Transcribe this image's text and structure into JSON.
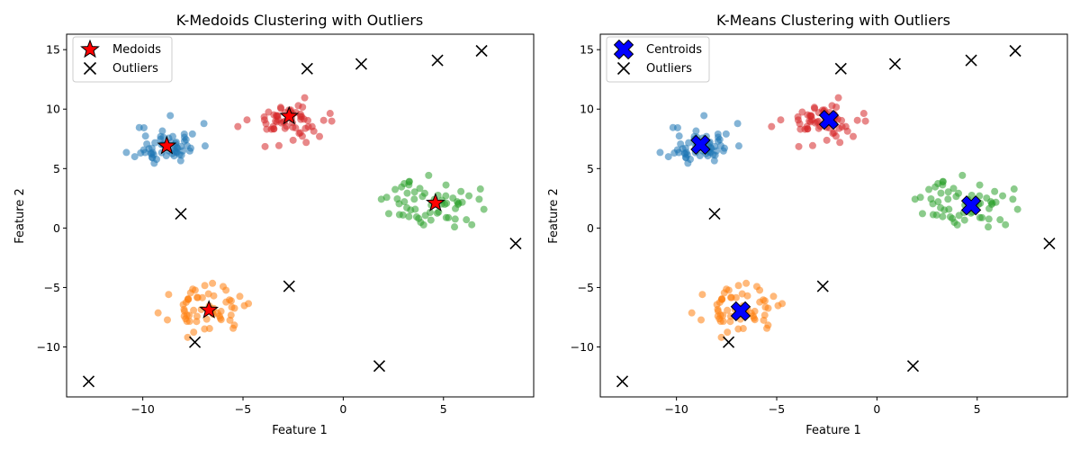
{
  "chart_data": [
    {
      "type": "scatter",
      "title": "K-Medoids Clustering with Outliers",
      "xlabel": "Feature 1",
      "ylabel": "Feature 2",
      "xlim": [
        -13.8,
        9.5
      ],
      "ylim": [
        -14.2,
        16.3
      ],
      "xticks": [
        -10,
        -5,
        0,
        5
      ],
      "yticks": [
        -10,
        -5,
        0,
        5,
        10,
        15
      ],
      "grid": false,
      "legend_position": "top-left",
      "clusters": [
        {
          "color": "#1f77b4",
          "center": [
            -8.8,
            7.0
          ],
          "spread": [
            0.8,
            0.9
          ],
          "n": 60,
          "seed": 11
        },
        {
          "color": "#ff7f0e",
          "center": [
            -6.8,
            -6.9
          ],
          "spread": [
            0.9,
            0.9
          ],
          "n": 60,
          "seed": 23
        },
        {
          "color": "#2ca02c",
          "center": [
            4.5,
            2.0
          ],
          "spread": [
            1.1,
            1.0
          ],
          "n": 60,
          "seed": 37
        },
        {
          "color": "#d62728",
          "center": [
            -2.6,
            9.0
          ],
          "spread": [
            1.0,
            0.9
          ],
          "n": 60,
          "seed": 53
        }
      ],
      "centers": {
        "label": "Medoids",
        "marker": "star",
        "color": "#ff0000",
        "points": [
          [
            -8.8,
            6.9
          ],
          [
            -6.7,
            -6.9
          ],
          [
            4.6,
            2.1
          ],
          [
            -2.7,
            9.4
          ]
        ]
      },
      "outliers": {
        "label": "Outliers",
        "marker": "x",
        "color": "#000000",
        "points": [
          [
            -1.8,
            13.4
          ],
          [
            0.9,
            13.8
          ],
          [
            4.7,
            14.1
          ],
          [
            6.9,
            14.9
          ],
          [
            -8.1,
            1.2
          ],
          [
            8.6,
            -1.3
          ],
          [
            -2.7,
            -4.9
          ],
          [
            -7.4,
            -9.6
          ],
          [
            1.8,
            -11.6
          ],
          [
            -12.7,
            -12.9
          ]
        ]
      }
    },
    {
      "type": "scatter",
      "title": "K-Means Clustering with Outliers",
      "xlabel": "Feature 1",
      "ylabel": "Feature 2",
      "xlim": [
        -13.8,
        9.5
      ],
      "ylim": [
        -14.2,
        16.3
      ],
      "xticks": [
        -10,
        -5,
        0,
        5
      ],
      "yticks": [
        -10,
        -5,
        0,
        5,
        10,
        15
      ],
      "grid": false,
      "legend_position": "top-left",
      "clusters": [
        {
          "color": "#1f77b4",
          "center": [
            -8.8,
            7.0
          ],
          "spread": [
            0.8,
            0.9
          ],
          "n": 60,
          "seed": 11
        },
        {
          "color": "#ff7f0e",
          "center": [
            -6.8,
            -6.9
          ],
          "spread": [
            0.9,
            0.9
          ],
          "n": 60,
          "seed": 23
        },
        {
          "color": "#2ca02c",
          "center": [
            4.5,
            2.0
          ],
          "spread": [
            1.1,
            1.0
          ],
          "n": 60,
          "seed": 37
        },
        {
          "color": "#d62728",
          "center": [
            -2.6,
            9.0
          ],
          "spread": [
            1.0,
            0.9
          ],
          "n": 60,
          "seed": 53
        }
      ],
      "centers": {
        "label": "Centroids",
        "marker": "bigx",
        "color": "#0000ff",
        "points": [
          [
            -8.8,
            7.0
          ],
          [
            -6.8,
            -7.0
          ],
          [
            4.7,
            1.9
          ],
          [
            -2.4,
            9.1
          ]
        ]
      },
      "outliers": {
        "label": "Outliers",
        "marker": "x",
        "color": "#000000",
        "points": [
          [
            -1.8,
            13.4
          ],
          [
            0.9,
            13.8
          ],
          [
            4.7,
            14.1
          ],
          [
            6.9,
            14.9
          ],
          [
            -8.1,
            1.2
          ],
          [
            8.6,
            -1.3
          ],
          [
            -2.7,
            -4.9
          ],
          [
            -7.4,
            -9.6
          ],
          [
            1.8,
            -11.6
          ],
          [
            -12.7,
            -12.9
          ]
        ]
      }
    }
  ]
}
